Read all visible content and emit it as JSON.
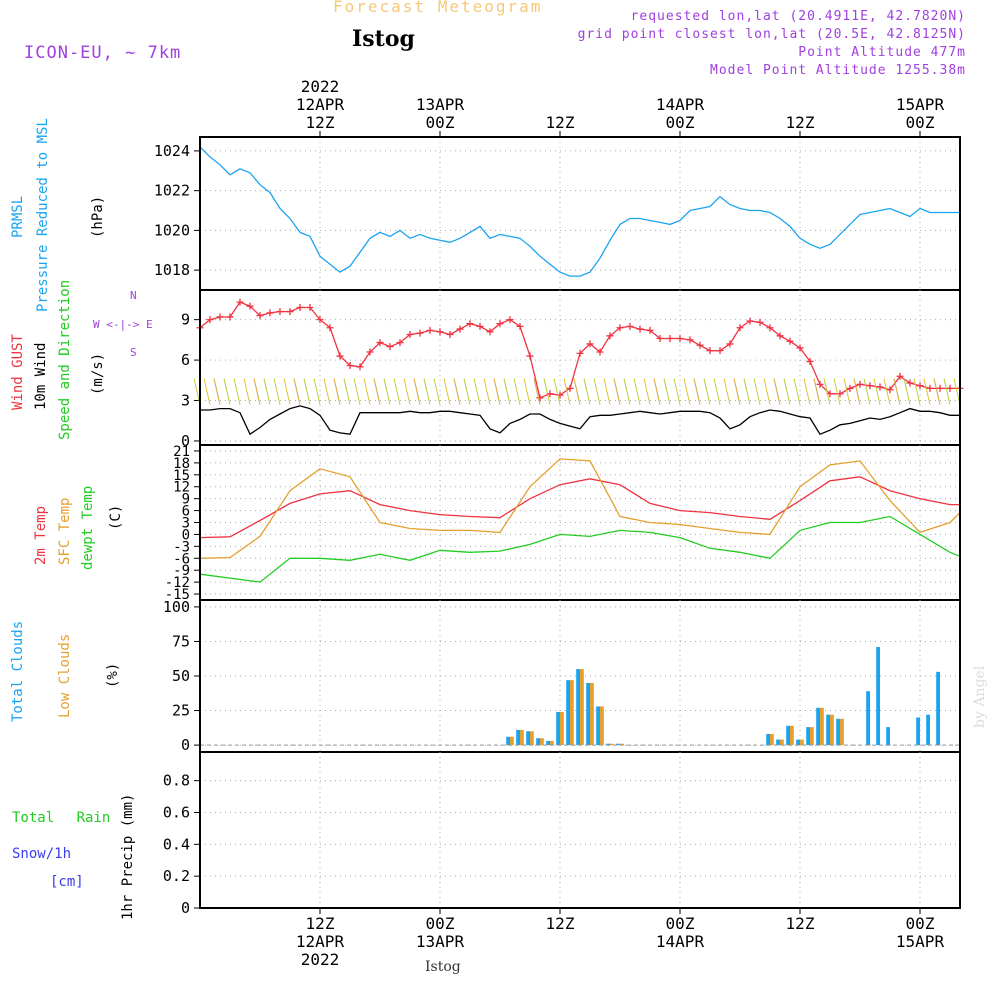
{
  "header": {
    "suptitle": "Forecast Meteogram",
    "title": "Istog",
    "model": "ICON-EU, ~ 7km",
    "info": [
      "requested lon,lat (20.4911E, 42.7820N)",
      "grid point closest lon,lat (20.5E, 42.8125N)",
      "Point Altitude 477m",
      "Model Point Altitude 1255.38m"
    ],
    "footer": "Istog",
    "credit": "by Angel"
  },
  "colors": {
    "prmsl": "#1aa3ef",
    "gust": "#ef3340",
    "wind": "#000000",
    "dir": "#33cc33",
    "temp2m": "#ef3340",
    "sfc": "#e5a030",
    "dew": "#22cc22",
    "total": "#1aa3ef",
    "low": "#e5a030",
    "rain": "#22cc22",
    "snow": "#3a3aef",
    "purple": "#a040e0"
  },
  "time_axis": {
    "top_labels": [
      {
        "x": 12,
        "lines": [
          "2022",
          "12APR",
          "12Z"
        ]
      },
      {
        "x": 24,
        "lines": [
          "13APR",
          "00Z"
        ]
      },
      {
        "x": 36,
        "lines": [
          "12Z"
        ]
      },
      {
        "x": 48,
        "lines": [
          "14APR",
          "00Z"
        ]
      },
      {
        "x": 60,
        "lines": [
          "12Z"
        ]
      },
      {
        "x": 72,
        "lines": [
          "15APR",
          "00Z"
        ]
      }
    ],
    "bottom_labels": [
      {
        "x": 12,
        "lines": [
          "12Z",
          "12APR",
          "2022"
        ]
      },
      {
        "x": 24,
        "lines": [
          "00Z",
          "13APR"
        ]
      },
      {
        "x": 36,
        "lines": [
          "12Z"
        ]
      },
      {
        "x": 48,
        "lines": [
          "00Z",
          "14APR"
        ]
      },
      {
        "x": 60,
        "lines": [
          "12Z"
        ]
      },
      {
        "x": 72,
        "lines": [
          "00Z",
          "15APR"
        ]
      }
    ]
  },
  "chart_data": [
    {
      "type": "line",
      "panel": "pressure",
      "ylabel_lines": [
        "PRMSL",
        "Pressure Reduced to MSL",
        "(hPa)"
      ],
      "yticks": [
        1018,
        1020,
        1022,
        1024
      ],
      "ylim": [
        1017,
        1024.7
      ],
      "series": [
        {
          "name": "PRMSL",
          "x": [
            0,
            1,
            2,
            3,
            4,
            5,
            6,
            7,
            8,
            9,
            10,
            11,
            12,
            13,
            14,
            15,
            16,
            17,
            18,
            19,
            20,
            21,
            22,
            23,
            24,
            25,
            26,
            27,
            28,
            29,
            30,
            31,
            32,
            33,
            34,
            35,
            36,
            37,
            38,
            39,
            40,
            41,
            42,
            43,
            44,
            45,
            46,
            47,
            48,
            49,
            50,
            51,
            52,
            53,
            54,
            55,
            56,
            57,
            58,
            59,
            60,
            61,
            62,
            63,
            64,
            65,
            66,
            67,
            68,
            69,
            70,
            71,
            72,
            73,
            74,
            75,
            76
          ],
          "y": [
            1024.2,
            1023.7,
            1023.3,
            1022.8,
            1023.1,
            1022.9,
            1022.3,
            1021.9,
            1021.1,
            1020.6,
            1019.9,
            1019.7,
            1018.7,
            1018.3,
            1017.9,
            1018.2,
            1018.9,
            1019.6,
            1019.9,
            1019.7,
            1020.0,
            1019.6,
            1019.8,
            1019.6,
            1019.5,
            1019.4,
            1019.6,
            1019.9,
            1020.2,
            1019.6,
            1019.8,
            1019.7,
            1019.6,
            1019.2,
            1018.7,
            1018.3,
            1017.9,
            1017.7,
            1017.7,
            1017.9,
            1018.6,
            1019.5,
            1020.3,
            1020.6,
            1020.6,
            1020.5,
            1020.4,
            1020.3,
            1020.5,
            1021.0,
            1021.1,
            1021.2,
            1021.7,
            1021.3,
            1021.1,
            1021.0,
            1021.0,
            1020.9,
            1020.6,
            1020.2,
            1019.6,
            1019.3,
            1019.1,
            1019.3,
            1019.8,
            1020.3,
            1020.8,
            1020.9,
            1021.0,
            1021.1,
            1020.9,
            1020.7,
            1021.1,
            1020.9,
            1020.9,
            1020.9,
            1020.9
          ]
        }
      ]
    },
    {
      "type": "line",
      "panel": "wind",
      "ylabel_lines": [
        "Wind GUST",
        "10m Wind",
        "Speed and Direction",
        "(m/s)"
      ],
      "compass": [
        "N",
        "W <-|-> E",
        "S"
      ],
      "yticks": [
        0,
        3,
        6,
        9
      ],
      "ylim": [
        -0.3,
        11.2
      ],
      "series": [
        {
          "name": "Wind GUST",
          "x": [
            0,
            1,
            2,
            3,
            4,
            5,
            6,
            7,
            8,
            9,
            10,
            11,
            12,
            13,
            14,
            15,
            16,
            17,
            18,
            19,
            20,
            21,
            22,
            23,
            24,
            25,
            26,
            27,
            28,
            29,
            30,
            31,
            32,
            33,
            34,
            35,
            36,
            37,
            38,
            39,
            40,
            41,
            42,
            43,
            44,
            45,
            46,
            47,
            48,
            49,
            50,
            51,
            52,
            53,
            54,
            55,
            56,
            57,
            58,
            59,
            60,
            61,
            62,
            63,
            64,
            65,
            66,
            67,
            68,
            69,
            70,
            71,
            72,
            73,
            74,
            75,
            76
          ],
          "y": [
            8.4,
            9.0,
            9.2,
            9.2,
            10.3,
            10.0,
            9.3,
            9.5,
            9.6,
            9.6,
            9.9,
            9.9,
            9.0,
            8.4,
            6.3,
            5.6,
            5.5,
            6.6,
            7.3,
            7.0,
            7.3,
            7.9,
            8.0,
            8.2,
            8.1,
            7.9,
            8.3,
            8.7,
            8.5,
            8.1,
            8.7,
            9.0,
            8.5,
            6.3,
            3.2,
            3.5,
            3.4,
            3.9,
            6.5,
            7.2,
            6.6,
            7.8,
            8.4,
            8.5,
            8.3,
            8.2,
            7.6,
            7.6,
            7.6,
            7.5,
            7.1,
            6.7,
            6.7,
            7.2,
            8.4,
            8.9,
            8.8,
            8.4,
            7.8,
            7.4,
            6.9,
            5.9,
            4.2,
            3.5,
            3.5,
            3.9,
            4.2,
            4.1,
            4.0,
            3.8,
            4.8,
            4.3,
            4.1,
            3.9,
            3.9,
            3.9,
            3.9
          ]
        },
        {
          "name": "10m Wind",
          "x": [
            0,
            1,
            2,
            3,
            4,
            5,
            6,
            7,
            8,
            9,
            10,
            11,
            12,
            13,
            14,
            15,
            16,
            17,
            18,
            19,
            20,
            21,
            22,
            23,
            24,
            25,
            26,
            27,
            28,
            29,
            30,
            31,
            32,
            33,
            34,
            35,
            36,
            37,
            38,
            39,
            40,
            41,
            42,
            43,
            44,
            45,
            46,
            47,
            48,
            49,
            50,
            51,
            52,
            53,
            54,
            55,
            56,
            57,
            58,
            59,
            60,
            61,
            62,
            63,
            64,
            65,
            66,
            67,
            68,
            69,
            70,
            71,
            72,
            73,
            74,
            75,
            76
          ],
          "y": [
            2.3,
            2.3,
            2.4,
            2.4,
            2.1,
            0.5,
            1.0,
            1.6,
            2.0,
            2.4,
            2.6,
            2.4,
            1.9,
            0.8,
            0.6,
            0.5,
            2.1,
            2.1,
            2.1,
            2.1,
            2.1,
            2.2,
            2.1,
            2.1,
            2.2,
            2.2,
            2.1,
            2.0,
            1.9,
            0.9,
            0.6,
            1.3,
            1.6,
            2.0,
            2.0,
            1.6,
            1.3,
            1.1,
            0.9,
            1.8,
            1.9,
            1.9,
            2.0,
            2.1,
            2.2,
            2.1,
            2.0,
            2.1,
            2.2,
            2.2,
            2.2,
            2.1,
            1.7,
            0.9,
            1.2,
            1.8,
            2.1,
            2.3,
            2.2,
            2.0,
            1.8,
            1.7,
            0.5,
            0.8,
            1.2,
            1.3,
            1.5,
            1.7,
            1.6,
            1.8,
            2.1,
            2.4,
            2.2,
            2.2,
            2.1,
            1.9,
            1.9
          ]
        }
      ]
    },
    {
      "type": "line",
      "panel": "temperature",
      "ylabel_lines": [
        "2m Temp",
        "SFC Temp",
        "dewpt Temp",
        "(C)"
      ],
      "yticks": [
        -15,
        -12,
        -9,
        -6,
        -3,
        0,
        3,
        6,
        9,
        12,
        15,
        18,
        21
      ],
      "ylim": [
        -16.5,
        22.5
      ],
      "series": [
        {
          "name": "2m Temp",
          "x": [
            0,
            3,
            6,
            9,
            12,
            15,
            18,
            21,
            24,
            27,
            30,
            33,
            36,
            39,
            42,
            45,
            48,
            51,
            54,
            57,
            60,
            63,
            66,
            69,
            72,
            75,
            76
          ],
          "y": [
            -0.8,
            -0.6,
            3.5,
            7.8,
            10.2,
            11.0,
            7.5,
            6.0,
            5.0,
            4.5,
            4.2,
            9.0,
            12.5,
            14.0,
            12.5,
            7.8,
            6.0,
            5.5,
            4.5,
            3.8,
            8.5,
            13.5,
            14.5,
            11.0,
            9.0,
            7.5,
            7.5
          ]
        },
        {
          "name": "SFC Temp",
          "x": [
            0,
            3,
            6,
            9,
            12,
            15,
            18,
            21,
            24,
            27,
            30,
            33,
            36,
            39,
            42,
            45,
            48,
            51,
            54,
            57,
            60,
            63,
            66,
            69,
            72,
            75,
            76
          ],
          "y": [
            -6.0,
            -5.8,
            -0.5,
            11.0,
            16.5,
            14.5,
            3.0,
            1.5,
            1.0,
            1.0,
            0.5,
            12.0,
            19.0,
            18.5,
            4.5,
            3.0,
            2.5,
            1.5,
            0.5,
            0.0,
            12.0,
            17.5,
            18.5,
            8.5,
            0.5,
            3.0,
            5.5
          ]
        },
        {
          "name": "dewpt Temp",
          "x": [
            0,
            3,
            6,
            9,
            12,
            15,
            18,
            21,
            24,
            27,
            30,
            33,
            36,
            39,
            42,
            45,
            48,
            51,
            54,
            57,
            60,
            63,
            66,
            69,
            72,
            75,
            76
          ],
          "y": [
            -10.0,
            -11.0,
            -12.0,
            -6.0,
            -6.0,
            -6.5,
            -5.0,
            -6.5,
            -4.0,
            -4.5,
            -4.2,
            -2.5,
            0.0,
            -0.5,
            1.0,
            0.5,
            -0.8,
            -3.5,
            -4.5,
            -6.0,
            1.0,
            3.0,
            3.0,
            4.5,
            0.0,
            -4.5,
            -5.5
          ]
        }
      ]
    },
    {
      "type": "bar",
      "panel": "clouds",
      "ylabel_lines": [
        "Total Clouds",
        "Low Clouds",
        "(%)"
      ],
      "yticks": [
        0,
        25,
        50,
        75,
        100
      ],
      "ylim": [
        -5,
        105
      ],
      "series": [
        {
          "name": "Total Clouds",
          "x": [
            31,
            32,
            33,
            34,
            35,
            36,
            37,
            38,
            39,
            40,
            41,
            42,
            43,
            57,
            58,
            59,
            60,
            61,
            62,
            63,
            64,
            67,
            68,
            69,
            72,
            73,
            74
          ],
          "y": [
            6,
            11,
            10,
            5,
            3,
            24,
            47,
            55,
            45,
            28,
            1,
            1,
            0,
            8,
            4,
            14,
            4,
            13,
            27,
            22,
            19,
            39,
            71,
            13,
            20,
            22,
            53
          ]
        },
        {
          "name": "Low Clouds",
          "x": [
            31,
            32,
            33,
            34,
            35,
            36,
            37,
            38,
            39,
            40,
            41,
            42,
            43,
            57,
            58,
            59,
            60,
            61,
            62,
            63,
            64
          ],
          "y": [
            6,
            11,
            10,
            5,
            3,
            24,
            47,
            55,
            45,
            28,
            1,
            1,
            0,
            8,
            4,
            14,
            4,
            13,
            27,
            22,
            19
          ]
        }
      ]
    },
    {
      "type": "bar",
      "panel": "precip",
      "ylabel_lines": [
        "Total Rain",
        "Snow/1h",
        "[cm]",
        "1hr Precip (mm)"
      ],
      "yticks": [
        0,
        0.2,
        0.4,
        0.6,
        0.8
      ],
      "ylim": [
        0,
        0.98
      ],
      "series": [
        {
          "name": "Total Rain",
          "x": [],
          "y": []
        }
      ]
    }
  ]
}
